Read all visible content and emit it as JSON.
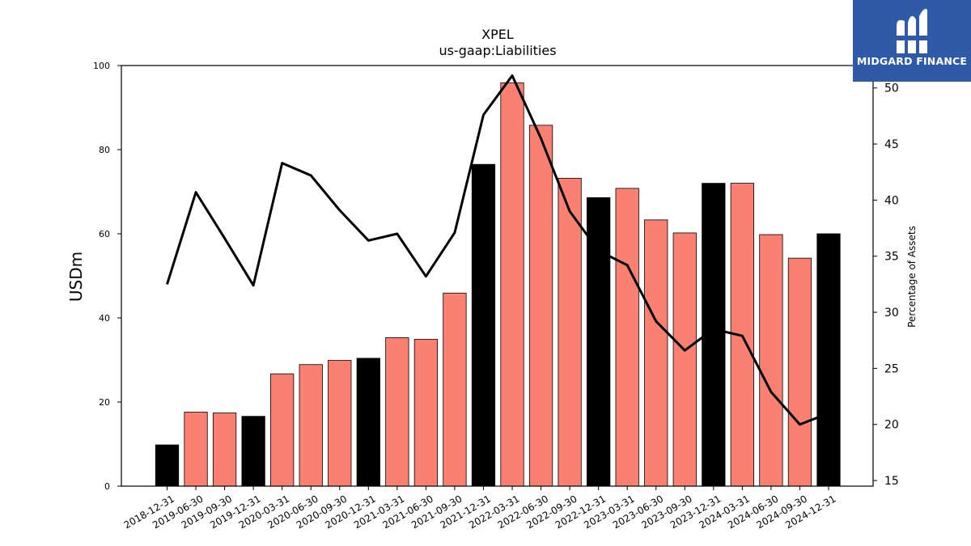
{
  "chart_data": {
    "type": "bar",
    "title": "XPEL",
    "subtitle": "us-gaap:Liabilities",
    "ylabel": "USDm",
    "y2label": "Percentage of Assets",
    "ylim": [
      0,
      100
    ],
    "y2lim": [
      14.5,
      52
    ],
    "yticks": [
      "0",
      "20",
      "40",
      "60",
      "80",
      "100"
    ],
    "y2ticks": [
      "15",
      "20",
      "25",
      "30",
      "35",
      "40",
      "45",
      "50"
    ],
    "categories": [
      "2018-12-31",
      "2019-06-30",
      "2019-09-30",
      "2019-12-31",
      "2020-03-31",
      "2020-06-30",
      "2020-09-30",
      "2020-12-31",
      "2021-03-31",
      "2021-06-30",
      "2021-09-30",
      "2021-12-31",
      "2022-03-31",
      "2022-06-30",
      "2022-09-30",
      "2022-12-31",
      "2023-03-31",
      "2023-06-30",
      "2023-09-30",
      "2023-12-31",
      "2024-03-31",
      "2024-06-30",
      "2024-09-30",
      "2024-12-31"
    ],
    "series": [
      {
        "type": "bar",
        "values": [
          9.8,
          17.6,
          17.4,
          16.6,
          26.7,
          28.9,
          29.9,
          30.4,
          35.3,
          34.9,
          45.9,
          76.5,
          95.9,
          85.8,
          73.2,
          68.6,
          70.8,
          63.3,
          60.2,
          72.0,
          72.0,
          59.8,
          54.2,
          60.0
        ],
        "colors": [
          "#000000",
          "#fa8072",
          "#fa8072",
          "#000000",
          "#fa8072",
          "#fa8072",
          "#fa8072",
          "#000000",
          "#fa8072",
          "#fa8072",
          "#fa8072",
          "#000000",
          "#fa8072",
          "#fa8072",
          "#fa8072",
          "#000000",
          "#fa8072",
          "#fa8072",
          "#fa8072",
          "#000000",
          "#fa8072",
          "#fa8072",
          "#fa8072",
          "#000000"
        ]
      },
      {
        "type": "line",
        "axis": "right",
        "color": "#000000",
        "values": [
          32.5,
          40.7,
          36.6,
          32.4,
          43.3,
          42.2,
          39.1,
          36.4,
          37.0,
          33.2,
          37.1,
          47.6,
          51.1,
          45.5,
          39.0,
          35.5,
          34.2,
          29.2,
          26.6,
          28.5,
          27.9,
          22.9,
          20.0,
          21.0
        ]
      }
    ],
    "grid": false,
    "legend": "none"
  },
  "logo": {
    "text": "MIDGARD FINANCE",
    "bg": "#2f5aa8"
  }
}
